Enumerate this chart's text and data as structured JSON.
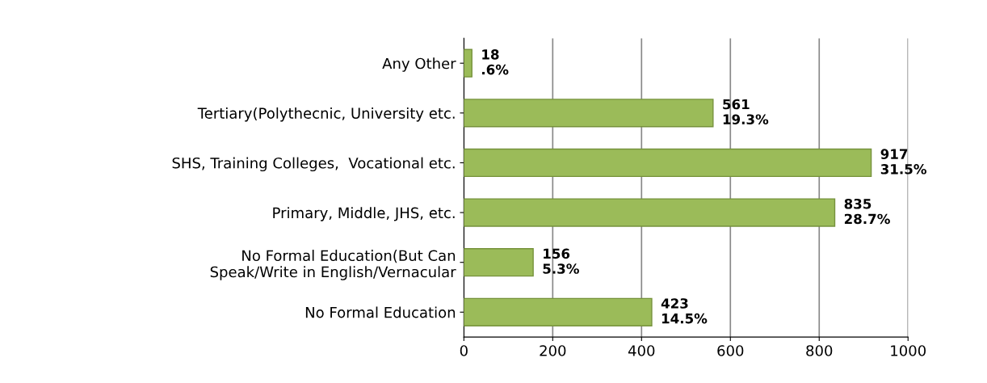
{
  "chart_data": {
    "type": "bar",
    "orientation": "horizontal",
    "categories": [
      "Any Other",
      "Tertiary(Polythecnic, University etc.",
      "SHS, Training Colleges,  Vocational etc.",
      "Primary, Middle, JHS, etc.",
      "No Formal Education(But Can\nSpeak/Write in English/Vernacular",
      "No Formal Education"
    ],
    "values": [
      18,
      561,
      917,
      835,
      156,
      423
    ],
    "value_labels": [
      "18\n.6%",
      "561\n19.3%",
      "917\n31.5%",
      "835\n28.7%",
      "156\n5.3%",
      "423\n14.5%"
    ],
    "color": "#9bbb59",
    "xlim": [
      0,
      1000
    ],
    "xticks": [
      0,
      200,
      400,
      600,
      800,
      1000
    ],
    "grid": "x"
  }
}
